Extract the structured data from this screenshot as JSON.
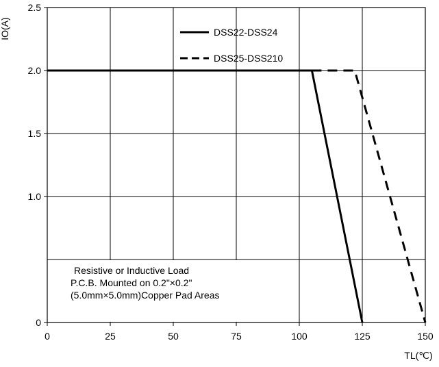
{
  "chart_data": {
    "type": "line",
    "title": "",
    "xlabel": "TL(℃)",
    "ylabel": "IO(A)",
    "xlim": [
      0,
      150
    ],
    "ylim": [
      0,
      2.5
    ],
    "x_ticks": [
      0,
      25,
      50,
      75,
      100,
      125,
      150
    ],
    "x_tick_labels": [
      "0",
      "25",
      "50",
      "75",
      "100",
      "125",
      "150"
    ],
    "y_ticks": [
      0,
      1.0,
      1.5,
      2.0,
      2.5
    ],
    "y_tick_labels": [
      "0",
      "1.0",
      "1.5",
      "2.0",
      "2.5"
    ],
    "y_gridlines": [
      0.5,
      1.0,
      1.5,
      2.0,
      2.5
    ],
    "x_gridlines": [
      25,
      50,
      75,
      100,
      125,
      150
    ],
    "grid": true,
    "legend": "top-center",
    "series": [
      {
        "name": "DSS22-DSS24",
        "style": "solid",
        "color": "#000000",
        "points": [
          [
            0,
            2.0
          ],
          [
            105,
            2.0
          ],
          [
            125,
            0
          ]
        ]
      },
      {
        "name": "DSS25-DSS210",
        "style": "dashed",
        "color": "#000000",
        "points": [
          [
            105,
            2.0
          ],
          [
            122,
            2.0
          ],
          [
            150,
            0
          ]
        ]
      }
    ],
    "annotation": [
      "Resistive or Inductive Load",
      "P.C.B. Mounted on 0.2\"×0.2\"",
      "(5.0mm×5.0mm)Copper Pad Areas"
    ]
  }
}
